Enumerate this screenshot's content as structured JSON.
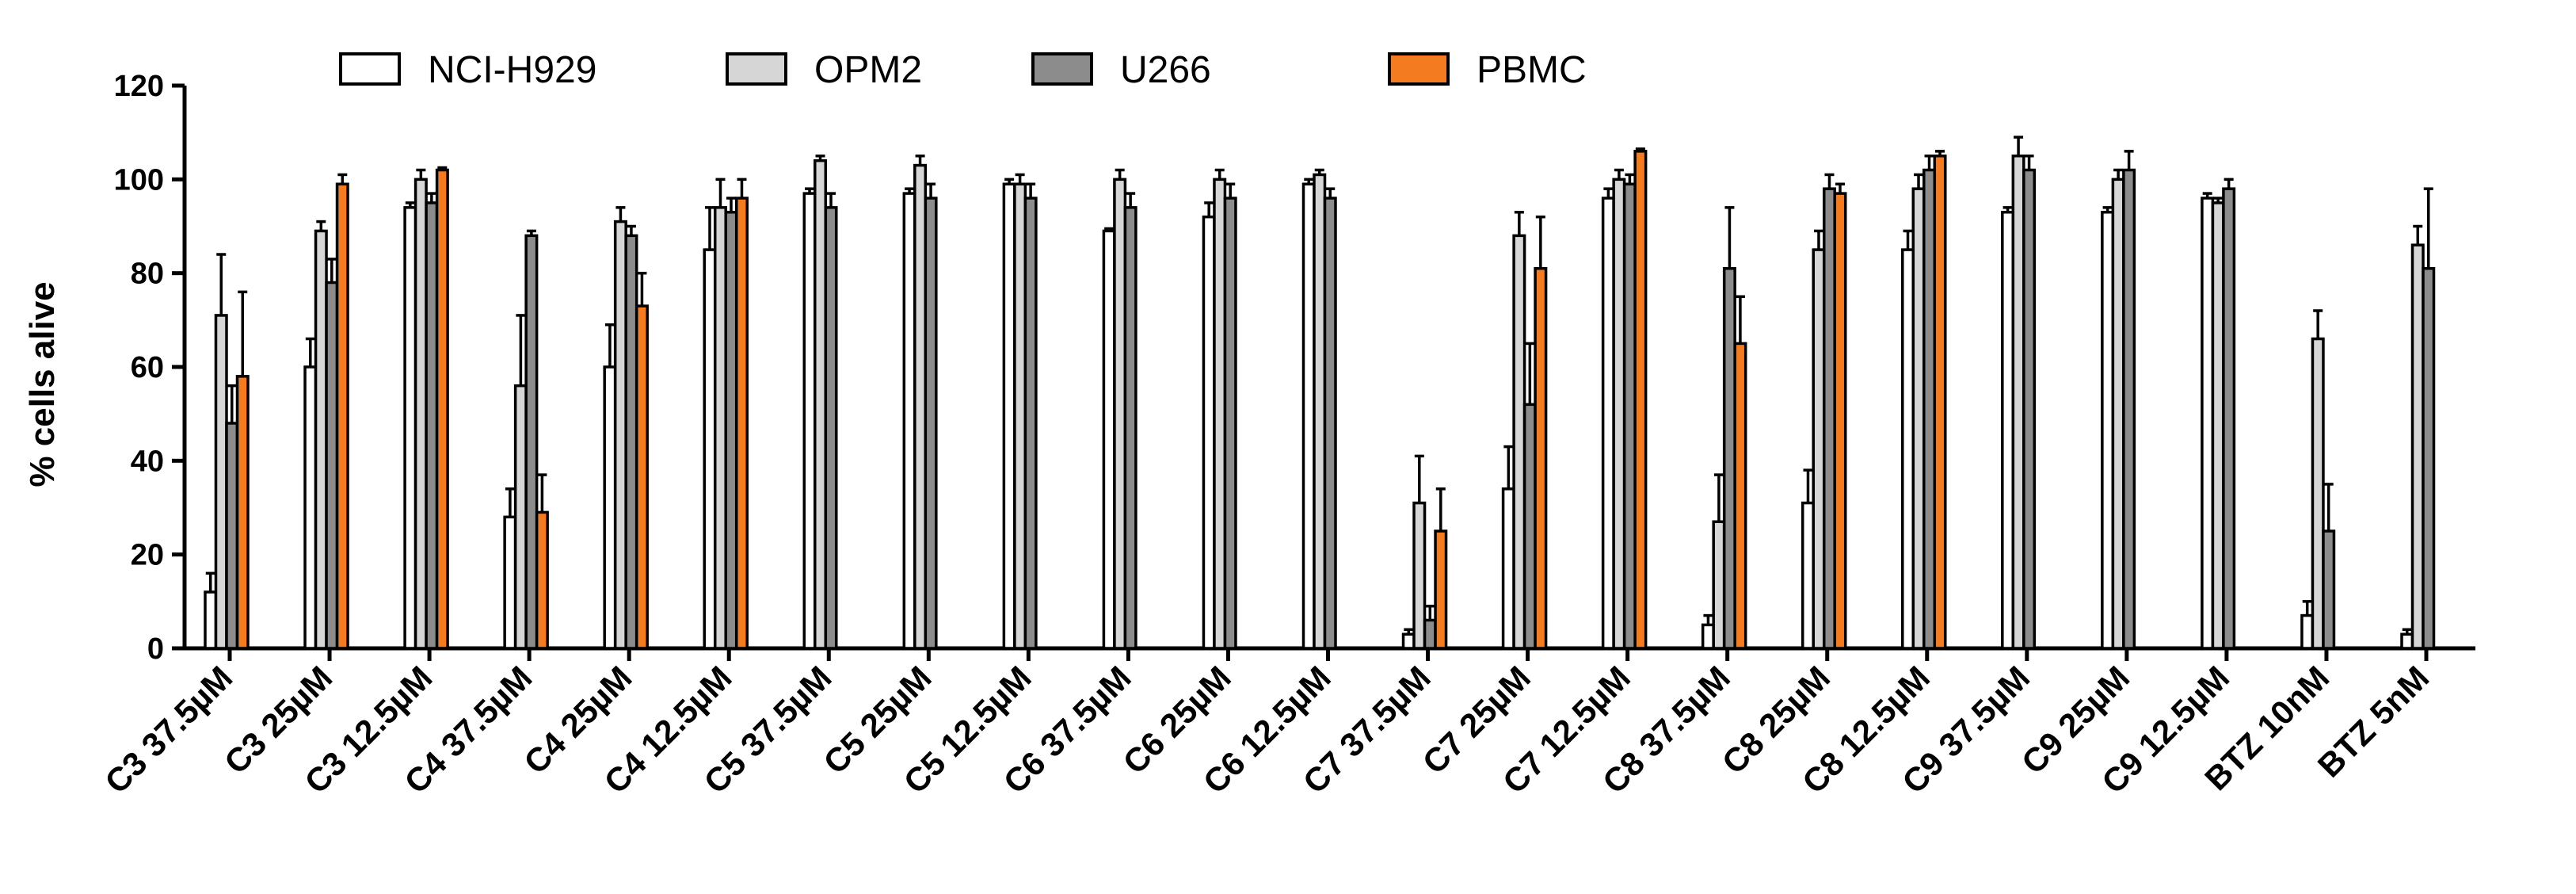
{
  "chart_data": {
    "type": "bar",
    "title": "",
    "xlabel": "",
    "ylabel": "% cells alive",
    "ylim": [
      0,
      120
    ],
    "yticks": [
      0,
      20,
      40,
      60,
      80,
      100,
      120
    ],
    "grid": false,
    "legend_position": "top",
    "categories": [
      "C3 37.5µM",
      "C3 25µM",
      "C3 12.5µM",
      "C4 37.5µM",
      "C4 25µM",
      "C4 12.5µM",
      "C5 37.5µM",
      "C5 25µM",
      "C5 12.5µM",
      "C6 37.5µM",
      "C6 25µM",
      "C6 12.5µM",
      "C7 37.5µM",
      "C7 25µM",
      "C7 12.5µM",
      "C8 37.5µM",
      "C8 25µM",
      "C8 12.5µM",
      "C9 37.5µM",
      "C9 25µM",
      "C9 12.5µM",
      "BTZ 10nM",
      "BTZ 5nM"
    ],
    "series": [
      {
        "name": "NCI-H929",
        "color": "#ffffff",
        "values": [
          12,
          60,
          94,
          28,
          60,
          85,
          97,
          97,
          99,
          89,
          92,
          99,
          3,
          34,
          96,
          5,
          31,
          85,
          93,
          93,
          96,
          7,
          3
        ],
        "errors": [
          4,
          6,
          1,
          6,
          9,
          9,
          1,
          1,
          1,
          0.5,
          3,
          1,
          1,
          9,
          2,
          2,
          7,
          4,
          1,
          1,
          1,
          3,
          1
        ]
      },
      {
        "name": "OPM2",
        "color": "#d6d6d6",
        "values": [
          71,
          89,
          100,
          56,
          91,
          94,
          104,
          103,
          99,
          100,
          100,
          101,
          31,
          88,
          100,
          27,
          85,
          98,
          105,
          100,
          95,
          66,
          86
        ],
        "errors": [
          13,
          2,
          2,
          15,
          3,
          6,
          1,
          2,
          2,
          2,
          2,
          1,
          10,
          5,
          2,
          10,
          4,
          3,
          4,
          2,
          1,
          6,
          4
        ]
      },
      {
        "name": "U266",
        "color": "#8c8c8c",
        "values": [
          48,
          78,
          95,
          88,
          88,
          93,
          94,
          96,
          96,
          94,
          96,
          96,
          6,
          52,
          99,
          81,
          98,
          102,
          102,
          102,
          98,
          25,
          81
        ],
        "errors": [
          8,
          5,
          2,
          1,
          2,
          3,
          3,
          3,
          3,
          3,
          3,
          2,
          3,
          13,
          2,
          13,
          3,
          3,
          3,
          4,
          2,
          10,
          17
        ]
      },
      {
        "name": "PBMC",
        "color": "#f47b20",
        "values": [
          58,
          99,
          102,
          29,
          73,
          96,
          null,
          null,
          null,
          null,
          null,
          null,
          25,
          81,
          106,
          65,
          97,
          105,
          null,
          null,
          null,
          null,
          null
        ],
        "errors": [
          18,
          2,
          0.5,
          8,
          7,
          4,
          null,
          null,
          null,
          null,
          null,
          null,
          9,
          11,
          0.5,
          10,
          2,
          1,
          null,
          null,
          null,
          null,
          null
        ]
      }
    ]
  }
}
